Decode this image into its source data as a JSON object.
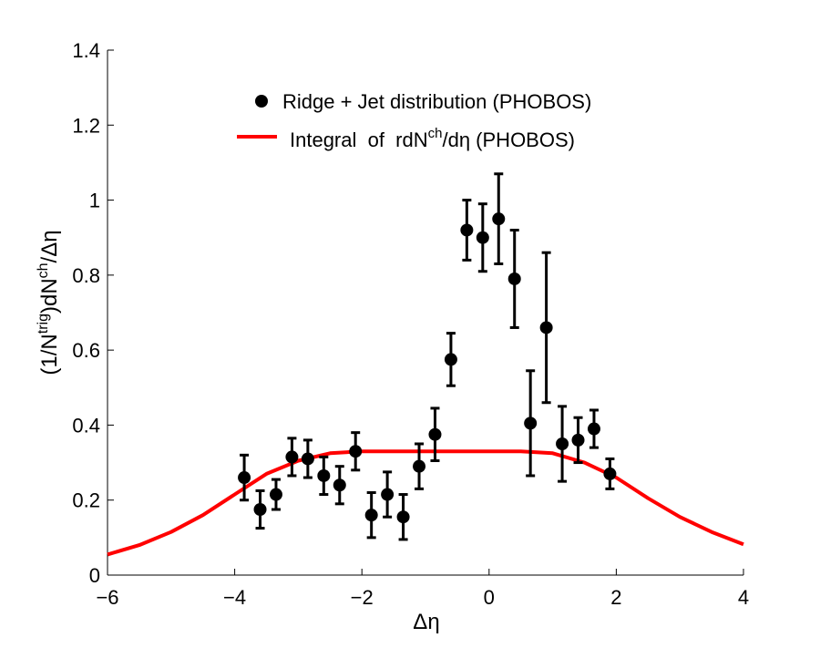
{
  "chart_data": {
    "type": "scatter",
    "title": "",
    "xlabel": "Δη",
    "ylabel": {
      "prefix": "(1/N",
      "sup1": "trig",
      "mid": ")dN",
      "sup2": "ch",
      "suffix": "/Δη"
    },
    "xlim": [
      -6,
      4
    ],
    "ylim": [
      0,
      1.4
    ],
    "xticks": [
      -6,
      -4,
      -2,
      0,
      2,
      4
    ],
    "xtick_labels": [
      "−6",
      "−4",
      "−2",
      "0",
      "2",
      "4"
    ],
    "yticks": [
      0,
      0.2,
      0.4,
      0.6,
      0.8,
      1,
      1.2,
      1.4
    ],
    "ytick_labels": [
      "0",
      "0.2",
      "0.4",
      "0.6",
      "0.8",
      "1",
      "1.2",
      "1.4"
    ],
    "legend_position": "top-center",
    "series": [
      {
        "name": "Ridge + Jet distribution (PHOBOS)",
        "kind": "points_with_errorbars",
        "color": "#000000",
        "x": [
          -3.85,
          -3.6,
          -3.35,
          -3.1,
          -2.85,
          -2.6,
          -2.35,
          -2.1,
          -1.85,
          -1.6,
          -1.35,
          -1.1,
          -0.85,
          -0.6,
          -0.35,
          -0.1,
          0.15,
          0.4,
          0.65,
          0.9,
          1.15,
          1.4,
          1.65,
          1.9
        ],
        "y": [
          0.26,
          0.175,
          0.215,
          0.315,
          0.31,
          0.265,
          0.24,
          0.33,
          0.16,
          0.215,
          0.155,
          0.29,
          0.375,
          0.575,
          0.92,
          0.9,
          0.95,
          0.79,
          0.405,
          0.66,
          0.35,
          0.36,
          0.39,
          0.27
        ],
        "err": [
          0.06,
          0.05,
          0.04,
          0.05,
          0.05,
          0.05,
          0.05,
          0.05,
          0.06,
          0.06,
          0.06,
          0.06,
          0.07,
          0.07,
          0.08,
          0.09,
          0.12,
          0.13,
          0.14,
          0.2,
          0.1,
          0.06,
          0.05,
          0.04
        ]
      },
      {
        "name": "Integral  of  rdN^ch/dη (PHOBOS)",
        "kind": "line",
        "color": "#ff0000",
        "x": [
          -6,
          -5.5,
          -5,
          -4.5,
          -4,
          -3.5,
          -3,
          -2.5,
          -2,
          -1.5,
          -1,
          -0.5,
          0,
          0.5,
          1,
          1.5,
          2,
          2.5,
          3,
          3.5,
          4
        ],
        "y": [
          0.055,
          0.08,
          0.115,
          0.16,
          0.215,
          0.27,
          0.305,
          0.325,
          0.33,
          0.33,
          0.33,
          0.33,
          0.33,
          0.33,
          0.325,
          0.3,
          0.26,
          0.205,
          0.155,
          0.115,
          0.082
        ]
      }
    ],
    "legend": {
      "entry1": "Ridge + Jet distribution (PHOBOS)",
      "entry2_prefix": "Integral  of  rdN",
      "entry2_sup": "ch",
      "entry2_suffix": "/dη (PHOBOS)"
    }
  }
}
